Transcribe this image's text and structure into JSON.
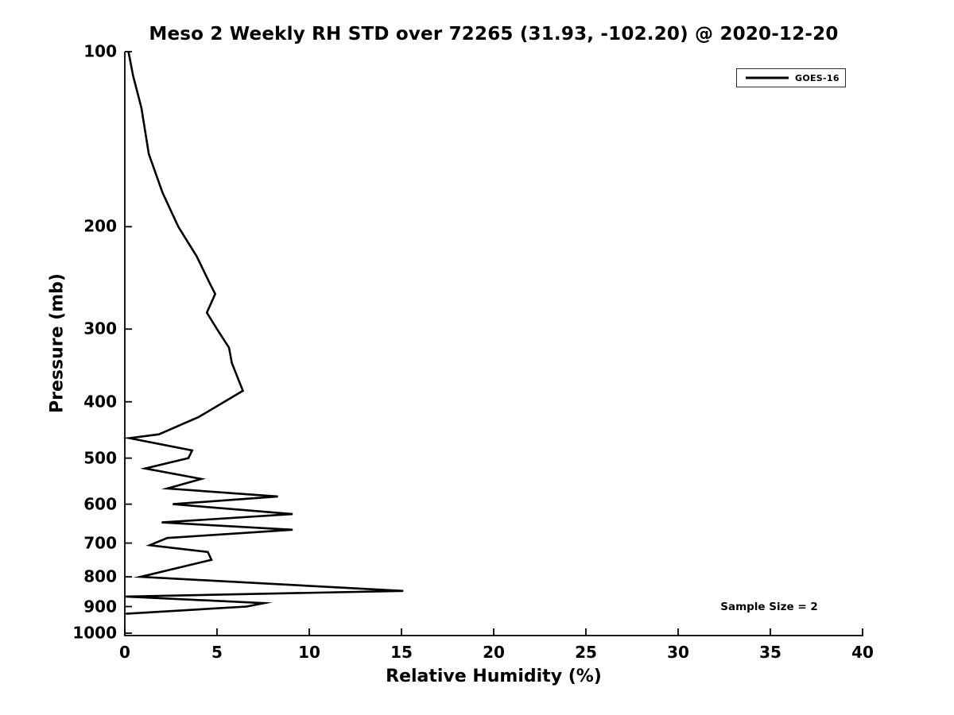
{
  "chart_data": {
    "type": "line",
    "title": "Meso 2 Weekly RH STD over 72265 (31.93, -102.20) @ 2020-12-20",
    "xlabel": "Relative Humidity (%)",
    "ylabel": "Pressure (mb)",
    "xlim": [
      0,
      40
    ],
    "ylim": [
      100,
      1000
    ],
    "y_scale": "log",
    "y_inverted": true,
    "grid": false,
    "x_ticks": [
      0,
      5,
      10,
      15,
      20,
      25,
      30,
      35,
      40
    ],
    "y_ticks": [
      100,
      200,
      300,
      400,
      500,
      600,
      700,
      800,
      900,
      1000
    ],
    "line_color": "#000000",
    "background_color": "#ffffff",
    "legend": {
      "position": "top-right",
      "entries": [
        {
          "label": "GOES-16",
          "color": "#000000"
        }
      ]
    },
    "annotation": "Sample Size = 2",
    "series": [
      {
        "name": "GOES-16",
        "color": "#000000",
        "points_pressure_rh": [
          [
            100,
            0.2
          ],
          [
            110,
            0.45
          ],
          [
            125,
            0.9
          ],
          [
            150,
            1.3
          ],
          [
            175,
            2.05
          ],
          [
            200,
            2.9
          ],
          [
            225,
            3.9
          ],
          [
            250,
            4.6
          ],
          [
            261,
            4.9
          ],
          [
            281,
            4.45
          ],
          [
            300,
            5.0
          ],
          [
            323,
            5.65
          ],
          [
            343,
            5.8
          ],
          [
            383,
            6.4
          ],
          [
            425,
            4.0
          ],
          [
            455,
            1.85
          ],
          [
            462,
            0.25
          ],
          [
            485,
            3.65
          ],
          [
            500,
            3.45
          ],
          [
            521,
            1.1
          ],
          [
            543,
            4.15
          ],
          [
            564,
            2.3
          ],
          [
            582,
            8.3
          ],
          [
            600,
            2.6
          ],
          [
            624,
            9.1
          ],
          [
            645,
            2.0
          ],
          [
            664,
            9.1
          ],
          [
            686,
            2.3
          ],
          [
            706,
            1.35
          ],
          [
            725,
            4.5
          ],
          [
            748,
            4.7
          ],
          [
            800,
            0.85
          ],
          [
            846,
            15.1
          ],
          [
            865,
            0.05
          ],
          [
            888,
            7.55
          ],
          [
            900,
            6.6
          ],
          [
            926,
            0.05
          ]
        ]
      }
    ]
  }
}
